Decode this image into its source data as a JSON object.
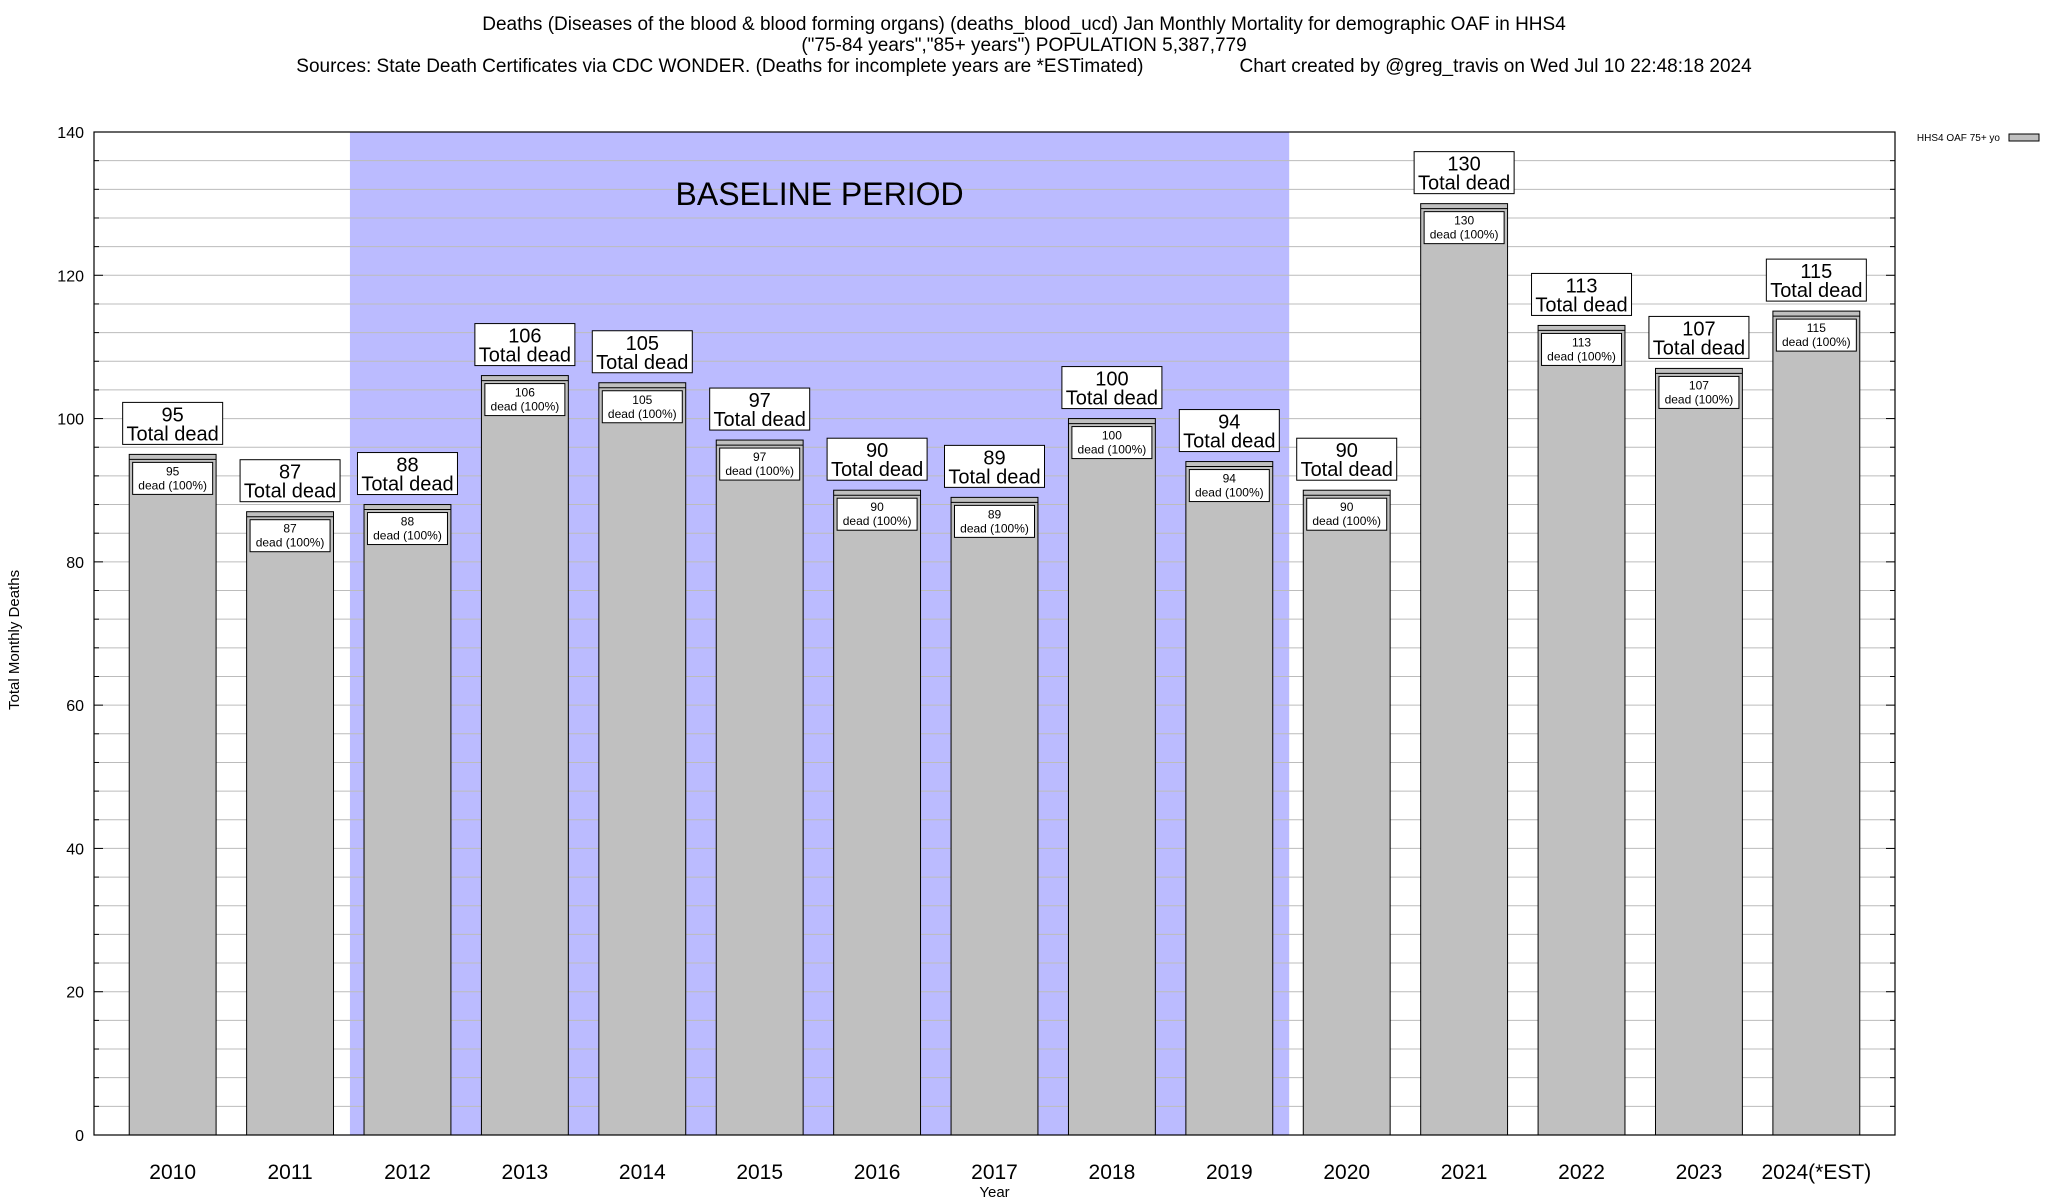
{
  "header": {
    "title_line1": "Deaths (Diseases of the blood & blood forming organs) (deaths_blood_ucd) Jan Monthly Mortality for demographic OAF in HHS4",
    "title_line2": "(\"75-84 years\",\"85+ years\") POPULATION 5,387,779",
    "sources": "Sources: State Death Certificates via CDC WONDER. (Deaths for incomplete years are *ESTimated)",
    "credit": "Chart created by @greg_travis on Wed Jul 10 22:48:18 2024"
  },
  "colors": {
    "bar_fill": "#c0c0c0",
    "baseline_fill": "#bbbbff",
    "grid": "#bcbcbc"
  },
  "chart_data": {
    "type": "bar",
    "title": "Deaths (Diseases of the blood & blood forming organs) (deaths_blood_ucd) Jan Monthly Mortality for demographic OAF in HHS4",
    "xlabel": "Year",
    "ylabel": "Total Monthly Deaths",
    "ylim": [
      0,
      140
    ],
    "yticks": [
      0,
      20,
      40,
      60,
      80,
      100,
      120,
      140
    ],
    "grid": true,
    "legend": {
      "placement": "top-right",
      "entries": [
        "HHS4 OAF 75+ yo"
      ]
    },
    "categories": [
      "2010",
      "2011",
      "2012",
      "2013",
      "2014",
      "2015",
      "2016",
      "2017",
      "2018",
      "2019",
      "2020",
      "2021",
      "2022",
      "2023",
      "2024(*EST)"
    ],
    "series": [
      {
        "name": "HHS4 OAF 75+ yo",
        "values": [
          95,
          87,
          88,
          106,
          105,
          97,
          90,
          89,
          100,
          94,
          90,
          130,
          113,
          107,
          115
        ]
      }
    ],
    "annotations": {
      "baseline_label": "BASELINE PERIOD",
      "baseline_range": [
        "2012",
        "2019"
      ],
      "total_suffix": "Total dead",
      "inner_suffix": "dead (100%)"
    }
  }
}
